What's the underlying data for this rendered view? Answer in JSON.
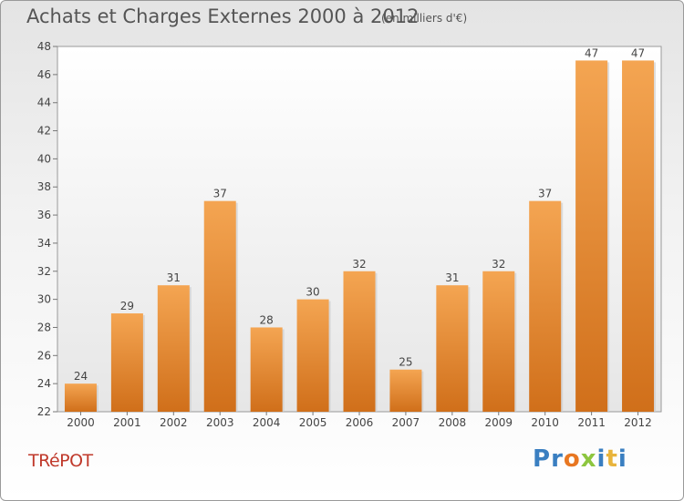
{
  "header": {
    "title": "Achats et Charges Externes 2000 à 2012",
    "unit": "(en milliers d'€)"
  },
  "footer": {
    "commune": "TRéPOT",
    "logo": {
      "letters": [
        "P",
        "r",
        "o",
        "x",
        "i",
        "t",
        "i"
      ],
      "colors": [
        "#3a7fc1",
        "#3a7fc1",
        "#e87722",
        "#8dc63f",
        "#3a7fc1",
        "#e8b43c",
        "#3a7fc1"
      ]
    }
  },
  "chart_data": {
    "type": "bar",
    "title": "Achats et Charges Externes 2000 à 2012",
    "subtitle": "(en milliers d'€)",
    "categories": [
      "2000",
      "2001",
      "2002",
      "2003",
      "2004",
      "2005",
      "2006",
      "2007",
      "2008",
      "2009",
      "2010",
      "2011",
      "2012"
    ],
    "values": [
      24,
      29,
      31,
      37,
      28,
      30,
      32,
      25,
      31,
      32,
      37,
      47,
      47
    ],
    "ylim": [
      22,
      48
    ],
    "yticks": [
      22,
      24,
      26,
      28,
      30,
      32,
      34,
      36,
      38,
      40,
      42,
      44,
      46,
      48
    ],
    "grid": false,
    "bar_color": "#f0913a",
    "data_labels": true
  }
}
